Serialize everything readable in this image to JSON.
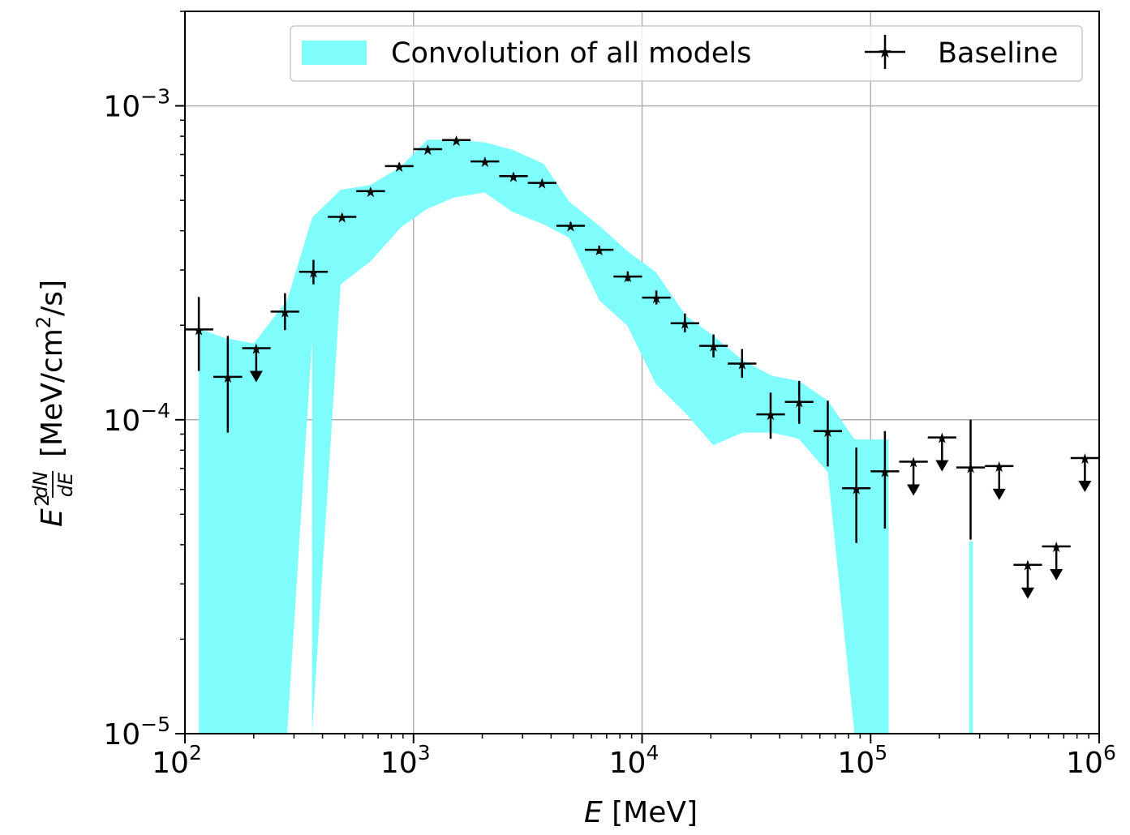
{
  "chart_data": {
    "type": "scatter",
    "xscale": "log",
    "yscale": "log",
    "xlim": [
      100,
      1000000
    ],
    "ylim": [
      1e-05,
      0.002
    ],
    "grid": true,
    "legend_position": "top-right",
    "xlabel": {
      "italic": "E",
      "text": " [MeV]"
    },
    "ylabel": {
      "prefix": "E",
      "sup": "2",
      "num": "dN",
      "den": "dE",
      "units": "[MeV/cm",
      "units_sup": "2",
      "units_end": "/s]"
    },
    "x_ticks": [
      {
        "value": 100,
        "base": "10",
        "exp": "2"
      },
      {
        "value": 1000,
        "base": "10",
        "exp": "3"
      },
      {
        "value": 10000,
        "base": "10",
        "exp": "4"
      },
      {
        "value": 100000,
        "base": "10",
        "exp": "5"
      },
      {
        "value": 1000000,
        "base": "10",
        "exp": "6"
      }
    ],
    "y_ticks": [
      {
        "value": 1e-05,
        "base": "10",
        "exp": "−5"
      },
      {
        "value": 0.0001,
        "base": "10",
        "exp": "−4"
      },
      {
        "value": 0.001,
        "base": "10",
        "exp": "−3"
      }
    ],
    "legend": {
      "band_label": "Convolution of all models",
      "points_label": "Baseline"
    },
    "colors": {
      "band": "#7ffcfc",
      "points": "#000000",
      "grid": "#b0b0b0",
      "legend_border": "#cccccc"
    },
    "band": {
      "name": "Convolution of all models",
      "segments": [
        {
          "x": [
            115,
            150,
            200,
            280,
            360,
            480,
            650,
            880,
            1150,
            1500,
            2050,
            2700,
            3700,
            4800,
            6500,
            8600,
            11500,
            15500,
            20500,
            27500,
            37000,
            48500,
            65000,
            85000,
            120000
          ],
          "upper": [
            0.000195,
            0.000182,
            0.000175,
            0.00024,
            0.00044,
            0.00054,
            0.00056,
            0.00064,
            0.00078,
            0.00078,
            0.000765,
            0.000725,
            0.000655,
            0.000495,
            0.000415,
            0.000345,
            0.000295,
            0.000215,
            0.000185,
            0.000155,
            0.000138,
            0.000133,
            0.000115,
            8.65e-05,
            8.65e-05
          ],
          "lower": [
            1e-05,
            1e-05,
            1e-05,
            1e-05,
            1e-05,
            0.00027,
            0.00032,
            0.00041,
            0.00047,
            0.00051,
            0.00053,
            0.00046,
            0.00042,
            0.00038,
            0.00024,
            0.0002,
            0.00013,
            0.000105,
            8.3e-05,
            9.1e-05,
            9.1e-05,
            8.7e-05,
            6.8e-05,
            1e-05,
            1e-05
          ],
          "inner_edge": {
            "x": 360,
            "lower": 0.00018
          }
        },
        {
          "x": [
            270000,
            280000
          ],
          "upper": [
            4.1e-05,
            4.1e-05
          ],
          "lower": [
            1e-05,
            1e-05
          ]
        }
      ]
    },
    "series": [
      {
        "name": "Baseline",
        "points": [
          {
            "x": 115,
            "y": 0.000194,
            "xerr": [
              100,
              133
            ],
            "yerr": [
              0.000143,
              0.000246
            ],
            "ul": false
          },
          {
            "x": 154,
            "y": 0.000137,
            "xerr": [
              133,
              178
            ],
            "yerr": [
              9.1e-05,
              0.000185
            ],
            "ul": false
          },
          {
            "x": 205,
            "y": 0.000169,
            "xerr": [
              178,
              237
            ],
            "ul": true
          },
          {
            "x": 274,
            "y": 0.000221,
            "xerr": [
              237,
              316
            ],
            "yerr": [
              0.000193,
              0.000253
            ],
            "ul": false
          },
          {
            "x": 365,
            "y": 0.000296,
            "xerr": [
              316,
              422
            ],
            "yerr": [
              0.00027,
              0.000323
            ],
            "ul": false
          },
          {
            "x": 487,
            "y": 0.000443,
            "xerr": [
              422,
              562
            ],
            "yerr": [
              0.000433,
              0.000453
            ],
            "ul": false
          },
          {
            "x": 649,
            "y": 0.000535,
            "xerr": [
              562,
              750
            ],
            "yerr": [
              0.000525,
              0.000545
            ],
            "ul": false
          },
          {
            "x": 866,
            "y": 0.000643,
            "xerr": [
              750,
              1000
            ],
            "yerr": [
              0.000628,
              0.000658
            ],
            "ul": false
          },
          {
            "x": 1155,
            "y": 0.000728,
            "xerr": [
              1000,
              1334
            ],
            "yerr": [
              0.000713,
              0.000743
            ],
            "ul": false
          },
          {
            "x": 1540,
            "y": 0.000778,
            "xerr": [
              1334,
              1778
            ],
            "yerr": [
              0.000763,
              0.000793
            ],
            "ul": false
          },
          {
            "x": 2054,
            "y": 0.000665,
            "xerr": [
              1778,
              2371
            ],
            "yerr": [
              0.000651,
              0.000679
            ],
            "ul": false
          },
          {
            "x": 2738,
            "y": 0.000597,
            "xerr": [
              2371,
              3162
            ],
            "yerr": [
              0.000584,
              0.00061
            ],
            "ul": false
          },
          {
            "x": 3652,
            "y": 0.000568,
            "xerr": [
              3162,
              4217
            ],
            "yerr": [
              0.000556,
              0.00058
            ],
            "ul": false
          },
          {
            "x": 4870,
            "y": 0.000415,
            "xerr": [
              4217,
              5623
            ],
            "yerr": [
              0.000405,
              0.000426
            ],
            "ul": false
          },
          {
            "x": 6494,
            "y": 0.000348,
            "xerr": [
              5623,
              7499
            ],
            "yerr": [
              0.000338,
              0.000358
            ],
            "ul": false
          },
          {
            "x": 8660,
            "y": 0.000286,
            "xerr": [
              7499,
              10000
            ],
            "yerr": [
              0.000276,
              0.000297
            ],
            "ul": false
          },
          {
            "x": 11548,
            "y": 0.000245,
            "xerr": [
              10000,
              13335
            ],
            "yerr": [
              0.000233,
              0.000258
            ],
            "ul": false
          },
          {
            "x": 15399,
            "y": 0.000203,
            "xerr": [
              13335,
              17783
            ],
            "yerr": [
              0.00019,
              0.000218
            ],
            "ul": false
          },
          {
            "x": 20535,
            "y": 0.000172,
            "xerr": [
              17783,
              23714
            ],
            "yerr": [
              0.000158,
              0.000187
            ],
            "ul": false
          },
          {
            "x": 27384,
            "y": 0.000151,
            "xerr": [
              23714,
              31623
            ],
            "yerr": [
              0.000136,
              0.000168
            ],
            "ul": false
          },
          {
            "x": 36517,
            "y": 0.000104,
            "xerr": [
              31623,
              42170
            ],
            "yerr": [
              8.7e-05,
              0.000122
            ],
            "ul": false
          },
          {
            "x": 48697,
            "y": 0.000114,
            "xerr": [
              42170,
              56234
            ],
            "yerr": [
              9.7e-05,
              0.000133
            ],
            "ul": false
          },
          {
            "x": 64938,
            "y": 9.2e-05,
            "xerr": [
              56234,
              74989
            ],
            "yerr": [
              7.1e-05,
              0.000115
            ],
            "ul": false
          },
          {
            "x": 86596,
            "y": 6.05e-05,
            "xerr": [
              74989,
              100000
            ],
            "yerr": [
              4.05e-05,
              8.15e-05
            ],
            "ul": false
          },
          {
            "x": 115478,
            "y": 6.85e-05,
            "xerr": [
              100000,
              133352
            ],
            "yerr": [
              4.5e-05,
              9.2e-05
            ],
            "ul": false
          },
          {
            "x": 153993,
            "y": 7.35e-05,
            "xerr": [
              133352,
              177828
            ],
            "ul": true
          },
          {
            "x": 205353,
            "y": 8.78e-05,
            "xerr": [
              177828,
              237137
            ],
            "ul": true
          },
          {
            "x": 273842,
            "y": 7.05e-05,
            "xerr": [
              237137,
              316228
            ],
            "yerr": [
              4.15e-05,
              0.0001
            ],
            "ul": false
          },
          {
            "x": 365174,
            "y": 7.12e-05,
            "xerr": [
              316228,
              421697
            ],
            "ul": true
          },
          {
            "x": 486968,
            "y": 3.45e-05,
            "xerr": [
              421697,
              562341
            ],
            "ul": true
          },
          {
            "x": 649382,
            "y": 3.95e-05,
            "xerr": [
              562341,
              749894
            ],
            "ul": true
          },
          {
            "x": 865964,
            "y": 7.55e-05,
            "xerr": [
              749894,
              1000000
            ],
            "ul": true
          }
        ]
      }
    ]
  }
}
